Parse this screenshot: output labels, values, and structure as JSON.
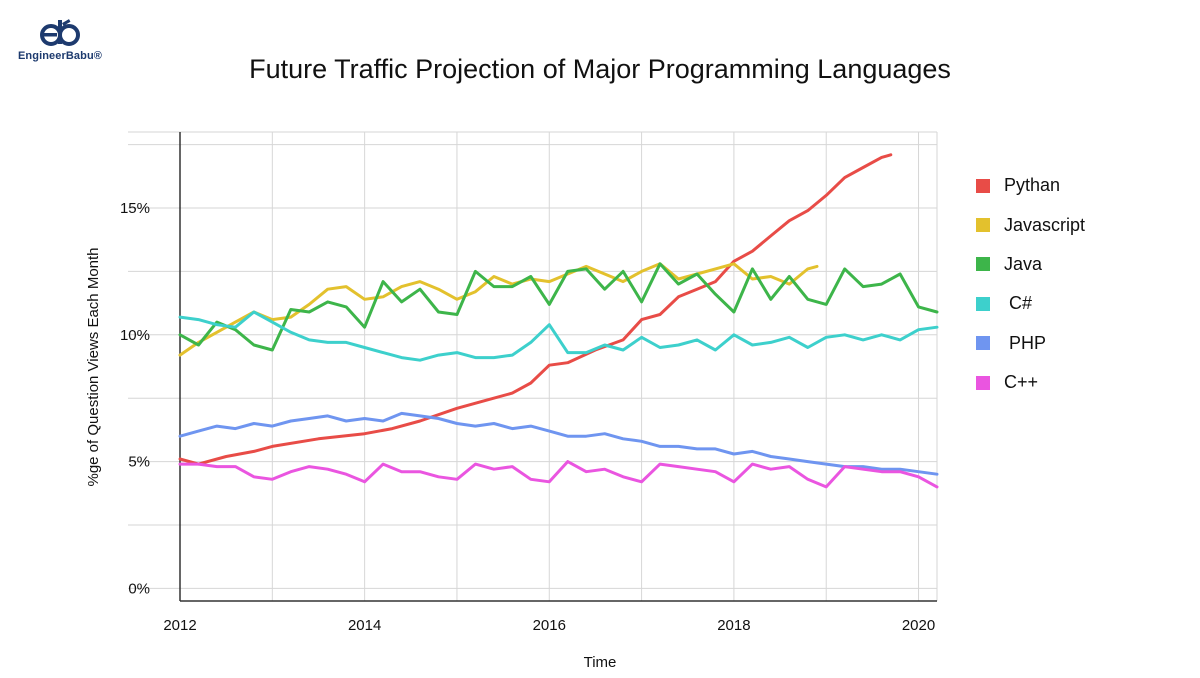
{
  "brand": {
    "name": "EngineerBabu®"
  },
  "chart_data": {
    "type": "line",
    "title": "Future Traffic Projection of Major Programming Languages",
    "xlabel": "Time",
    "ylabel": "%ge of Question Views Each Month",
    "xlim": [
      2012,
      2020.2
    ],
    "ylim": [
      -0.5,
      18
    ],
    "x_ticks": [
      2012,
      2014,
      2016,
      2018,
      2020
    ],
    "x_tick_labels": [
      "2012",
      "2014",
      "2016",
      "2018",
      "2020"
    ],
    "y_ticks": [
      0,
      5,
      10,
      15
    ],
    "y_tick_labels": [
      "0%",
      "5%",
      "10%",
      "15%"
    ],
    "grid": true,
    "legend_position": "right",
    "series": [
      {
        "name": "Pythan",
        "color": "#e84c47",
        "x": [
          2012,
          2012.2,
          2012.5,
          2012.8,
          2013,
          2013.5,
          2014,
          2014.3,
          2014.6,
          2015,
          2015.3,
          2015.6,
          2015.8,
          2016,
          2016.2,
          2016.5,
          2016.8,
          2017,
          2017.2,
          2017.4,
          2017.6,
          2017.8,
          2018,
          2018.2,
          2018.4,
          2018.6,
          2018.8,
          2019,
          2019.2,
          2019.4,
          2019.6,
          2019.7
        ],
        "values": [
          5.1,
          4.9,
          5.2,
          5.4,
          5.6,
          5.9,
          6.1,
          6.3,
          6.6,
          7.1,
          7.4,
          7.7,
          8.1,
          8.8,
          8.9,
          9.4,
          9.8,
          10.6,
          10.8,
          11.5,
          11.8,
          12.1,
          12.9,
          13.3,
          13.9,
          14.5,
          14.9,
          15.5,
          16.2,
          16.6,
          17.0,
          17.1
        ]
      },
      {
        "name": "Javascript",
        "color": "#e3c12d",
        "x": [
          2012,
          2012.2,
          2012.4,
          2012.6,
          2012.8,
          2013,
          2013.2,
          2013.4,
          2013.6,
          2013.8,
          2014,
          2014.2,
          2014.4,
          2014.6,
          2014.8,
          2015,
          2015.2,
          2015.4,
          2015.6,
          2015.8,
          2016,
          2016.2,
          2016.4,
          2016.6,
          2016.8,
          2017,
          2017.2,
          2017.4,
          2017.6,
          2017.8,
          2018,
          2018.2,
          2018.4,
          2018.6,
          2018.8,
          2018.9
        ],
        "values": [
          9.2,
          9.7,
          10.1,
          10.5,
          10.9,
          10.6,
          10.7,
          11.2,
          11.8,
          11.9,
          11.4,
          11.5,
          11.9,
          12.1,
          11.8,
          11.4,
          11.7,
          12.3,
          12.0,
          12.2,
          12.1,
          12.4,
          12.7,
          12.4,
          12.1,
          12.5,
          12.8,
          12.2,
          12.4,
          12.6,
          12.8,
          12.2,
          12.3,
          12.0,
          12.6,
          12.7
        ]
      },
      {
        "name": "Java",
        "color": "#3db54a",
        "x": [
          2012,
          2012.2,
          2012.4,
          2012.6,
          2012.8,
          2013,
          2013.2,
          2013.4,
          2013.6,
          2013.8,
          2014,
          2014.2,
          2014.4,
          2014.6,
          2014.8,
          2015,
          2015.2,
          2015.4,
          2015.6,
          2015.8,
          2016,
          2016.2,
          2016.4,
          2016.6,
          2016.8,
          2017,
          2017.2,
          2017.4,
          2017.6,
          2017.8,
          2018,
          2018.2,
          2018.4,
          2018.6,
          2018.8,
          2019,
          2019.2,
          2019.4,
          2019.6,
          2019.8,
          2020,
          2020.2
        ],
        "values": [
          10.0,
          9.6,
          10.5,
          10.2,
          9.6,
          9.4,
          11.0,
          10.9,
          11.3,
          11.1,
          10.3,
          12.1,
          11.3,
          11.8,
          10.9,
          10.8,
          12.5,
          11.9,
          11.9,
          12.3,
          11.2,
          12.5,
          12.6,
          11.8,
          12.5,
          11.3,
          12.8,
          12.0,
          12.4,
          11.6,
          10.9,
          12.6,
          11.4,
          12.3,
          11.4,
          11.2,
          12.6,
          11.9,
          12.0,
          12.4,
          11.1,
          10.9
        ]
      },
      {
        "name": " C#",
        "color": "#3dd0cc",
        "x": [
          2012,
          2012.2,
          2012.4,
          2012.6,
          2012.8,
          2013,
          2013.2,
          2013.4,
          2013.6,
          2013.8,
          2014,
          2014.2,
          2014.4,
          2014.6,
          2014.8,
          2015,
          2015.2,
          2015.4,
          2015.6,
          2015.8,
          2016,
          2016.2,
          2016.4,
          2016.6,
          2016.8,
          2017,
          2017.2,
          2017.4,
          2017.6,
          2017.8,
          2018,
          2018.2,
          2018.4,
          2018.6,
          2018.8,
          2019,
          2019.2,
          2019.4,
          2019.6,
          2019.8,
          2020,
          2020.2
        ],
        "values": [
          10.7,
          10.6,
          10.4,
          10.3,
          10.9,
          10.5,
          10.1,
          9.8,
          9.7,
          9.7,
          9.5,
          9.3,
          9.1,
          9.0,
          9.2,
          9.3,
          9.1,
          9.1,
          9.2,
          9.7,
          10.4,
          9.3,
          9.3,
          9.6,
          9.4,
          9.9,
          9.5,
          9.6,
          9.8,
          9.4,
          10.0,
          9.6,
          9.7,
          9.9,
          9.5,
          9.9,
          10.0,
          9.8,
          10.0,
          9.8,
          10.2,
          10.3
        ]
      },
      {
        "name": " PHP",
        "color": "#6f95f0",
        "x": [
          2012,
          2012.2,
          2012.4,
          2012.6,
          2012.8,
          2013,
          2013.2,
          2013.4,
          2013.6,
          2013.8,
          2014,
          2014.2,
          2014.4,
          2014.6,
          2014.8,
          2015,
          2015.2,
          2015.4,
          2015.6,
          2015.8,
          2016,
          2016.2,
          2016.4,
          2016.6,
          2016.8,
          2017,
          2017.2,
          2017.4,
          2017.6,
          2017.8,
          2018,
          2018.2,
          2018.4,
          2018.6,
          2018.8,
          2019,
          2019.2,
          2019.4,
          2019.6,
          2019.8,
          2020,
          2020.2
        ],
        "values": [
          6.0,
          6.2,
          6.4,
          6.3,
          6.5,
          6.4,
          6.6,
          6.7,
          6.8,
          6.6,
          6.7,
          6.6,
          6.9,
          6.8,
          6.7,
          6.5,
          6.4,
          6.5,
          6.3,
          6.4,
          6.2,
          6.0,
          6.0,
          6.1,
          5.9,
          5.8,
          5.6,
          5.6,
          5.5,
          5.5,
          5.3,
          5.4,
          5.2,
          5.1,
          5.0,
          4.9,
          4.8,
          4.8,
          4.7,
          4.7,
          4.6,
          4.5
        ]
      },
      {
        "name": "C++",
        "color": "#ea55e0",
        "x": [
          2012,
          2012.2,
          2012.4,
          2012.6,
          2012.8,
          2013,
          2013.2,
          2013.4,
          2013.6,
          2013.8,
          2014,
          2014.2,
          2014.4,
          2014.6,
          2014.8,
          2015,
          2015.2,
          2015.4,
          2015.6,
          2015.8,
          2016,
          2016.2,
          2016.4,
          2016.6,
          2016.8,
          2017,
          2017.2,
          2017.4,
          2017.6,
          2017.8,
          2018,
          2018.2,
          2018.4,
          2018.6,
          2018.8,
          2019,
          2019.2,
          2019.4,
          2019.6,
          2019.8,
          2020,
          2020.2
        ],
        "values": [
          4.9,
          4.9,
          4.8,
          4.8,
          4.4,
          4.3,
          4.6,
          4.8,
          4.7,
          4.5,
          4.2,
          4.9,
          4.6,
          4.6,
          4.4,
          4.3,
          4.9,
          4.7,
          4.8,
          4.3,
          4.2,
          5.0,
          4.6,
          4.7,
          4.4,
          4.2,
          4.9,
          4.8,
          4.7,
          4.6,
          4.2,
          4.9,
          4.7,
          4.8,
          4.3,
          4.0,
          4.8,
          4.7,
          4.6,
          4.6,
          4.4,
          4.0
        ]
      }
    ]
  }
}
